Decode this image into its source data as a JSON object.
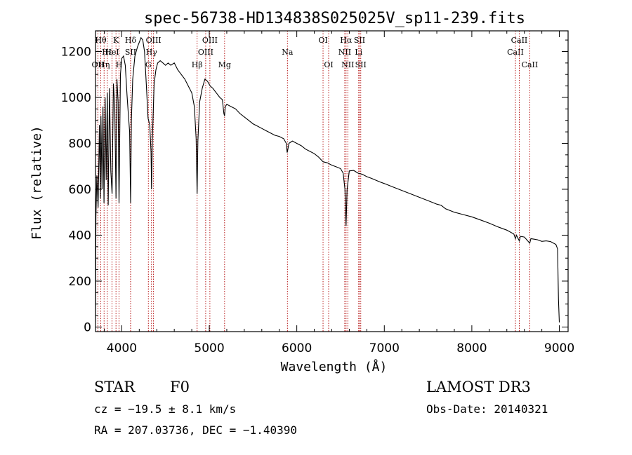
{
  "chart_data": {
    "type": "line",
    "title": "spec-56738-HD134838S025025V_sp11-239.fits",
    "xlabel": "Wavelength (Å)",
    "ylabel": "Flux (relative)",
    "xlim": [
      3700,
      9100
    ],
    "ylim": [
      -20,
      1290
    ],
    "x_ticks": [
      4000,
      5000,
      6000,
      7000,
      8000,
      9000
    ],
    "y_ticks": [
      0,
      200,
      400,
      600,
      800,
      1000,
      1200
    ],
    "grid": false,
    "series": [
      {
        "name": "spectrum",
        "points": [
          [
            3700,
            20
          ],
          [
            3705,
            480
          ],
          [
            3715,
            660
          ],
          [
            3730,
            520
          ],
          [
            3745,
            880
          ],
          [
            3755,
            560
          ],
          [
            3762,
            920
          ],
          [
            3775,
            600
          ],
          [
            3785,
            960
          ],
          [
            3797,
            540
          ],
          [
            3810,
            1000
          ],
          [
            3822,
            640
          ],
          [
            3835,
            1020
          ],
          [
            3845,
            530
          ],
          [
            3860,
            1040
          ],
          [
            3875,
            680
          ],
          [
            3889,
            580
          ],
          [
            3905,
            1060
          ],
          [
            3920,
            960
          ],
          [
            3934,
            560
          ],
          [
            3945,
            1080
          ],
          [
            3958,
            980
          ],
          [
            3969,
            540
          ],
          [
            3985,
            1100
          ],
          [
            4000,
            1170
          ],
          [
            4020,
            1180
          ],
          [
            4040,
            1140
          ],
          [
            4060,
            1010
          ],
          [
            4075,
            930
          ],
          [
            4090,
            850
          ],
          [
            4101,
            540
          ],
          [
            4110,
            900
          ],
          [
            4125,
            1080
          ],
          [
            4150,
            1180
          ],
          [
            4180,
            1220
          ],
          [
            4200,
            1240
          ],
          [
            4220,
            1260
          ],
          [
            4240,
            1250
          ],
          [
            4260,
            1200
          ],
          [
            4280,
            1060
          ],
          [
            4300,
            910
          ],
          [
            4320,
            880
          ],
          [
            4335,
            760
          ],
          [
            4340,
            600
          ],
          [
            4350,
            820
          ],
          [
            4370,
            1060
          ],
          [
            4390,
            1120
          ],
          [
            4410,
            1150
          ],
          [
            4440,
            1160
          ],
          [
            4470,
            1150
          ],
          [
            4500,
            1140
          ],
          [
            4530,
            1150
          ],
          [
            4560,
            1140
          ],
          [
            4600,
            1150
          ],
          [
            4640,
            1120
          ],
          [
            4680,
            1100
          ],
          [
            4720,
            1080
          ],
          [
            4760,
            1050
          ],
          [
            4800,
            1020
          ],
          [
            4830,
            960
          ],
          [
            4850,
            820
          ],
          [
            4861,
            580
          ],
          [
            4870,
            810
          ],
          [
            4890,
            980
          ],
          [
            4920,
            1040
          ],
          [
            4950,
            1080
          ],
          [
            4980,
            1070
          ],
          [
            5010,
            1050
          ],
          [
            5040,
            1040
          ],
          [
            5080,
            1020
          ],
          [
            5120,
            1000
          ],
          [
            5150,
            990
          ],
          [
            5167,
            930
          ],
          [
            5175,
            920
          ],
          [
            5183,
            960
          ],
          [
            5200,
            970
          ],
          [
            5250,
            960
          ],
          [
            5300,
            950
          ],
          [
            5350,
            930
          ],
          [
            5400,
            915
          ],
          [
            5450,
            900
          ],
          [
            5500,
            885
          ],
          [
            5550,
            875
          ],
          [
            5600,
            865
          ],
          [
            5650,
            855
          ],
          [
            5700,
            845
          ],
          [
            5750,
            835
          ],
          [
            5800,
            830
          ],
          [
            5850,
            820
          ],
          [
            5880,
            800
          ],
          [
            5890,
            760
          ],
          [
            5896,
            770
          ],
          [
            5910,
            800
          ],
          [
            5950,
            810
          ],
          [
            6000,
            800
          ],
          [
            6050,
            790
          ],
          [
            6100,
            775
          ],
          [
            6150,
            765
          ],
          [
            6200,
            755
          ],
          [
            6250,
            740
          ],
          [
            6300,
            720
          ],
          [
            6350,
            715
          ],
          [
            6400,
            705
          ],
          [
            6450,
            698
          ],
          [
            6500,
            690
          ],
          [
            6530,
            670
          ],
          [
            6550,
            600
          ],
          [
            6563,
            440
          ],
          [
            6575,
            600
          ],
          [
            6600,
            680
          ],
          [
            6650,
            682
          ],
          [
            6700,
            670
          ],
          [
            6750,
            665
          ],
          [
            6800,
            655
          ],
          [
            6850,
            648
          ],
          [
            6900,
            640
          ],
          [
            6950,
            632
          ],
          [
            7000,
            625
          ],
          [
            7100,
            610
          ],
          [
            7200,
            595
          ],
          [
            7300,
            580
          ],
          [
            7400,
            565
          ],
          [
            7500,
            550
          ],
          [
            7600,
            535
          ],
          [
            7650,
            530
          ],
          [
            7700,
            515
          ],
          [
            7800,
            500
          ],
          [
            7900,
            490
          ],
          [
            8000,
            480
          ],
          [
            8100,
            466
          ],
          [
            8200,
            452
          ],
          [
            8300,
            436
          ],
          [
            8400,
            422
          ],
          [
            8480,
            405
          ],
          [
            8498,
            385
          ],
          [
            8510,
            400
          ],
          [
            8542,
            375
          ],
          [
            8555,
            395
          ],
          [
            8600,
            392
          ],
          [
            8662,
            365
          ],
          [
            8675,
            385
          ],
          [
            8750,
            380
          ],
          [
            8800,
            373
          ],
          [
            8850,
            375
          ],
          [
            8900,
            372
          ],
          [
            8960,
            360
          ],
          [
            8980,
            340
          ],
          [
            8990,
            120
          ],
          [
            9000,
            20
          ]
        ]
      }
    ],
    "line_labels": [
      {
        "wl": 3727,
        "text": "OII",
        "row": 3
      },
      {
        "wl": 3760,
        "text": "Hθ",
        "row": 1
      },
      {
        "wl": 3798,
        "text": "Hη",
        "row": 3
      },
      {
        "wl": 3835,
        "text": "Hε",
        "row": 2
      },
      {
        "wl": 3889,
        "text": "HeI",
        "row": 2
      },
      {
        "wl": 3934,
        "text": "K",
        "row": 1
      },
      {
        "wl": 3969,
        "text": "H",
        "row": 3
      },
      {
        "wl": 4101,
        "text": "Hδ",
        "row": 1
      },
      {
        "wl": 4101,
        "text": "SII",
        "row": 2
      },
      {
        "wl": 4304,
        "text": "G",
        "row": 3
      },
      {
        "wl": 4340,
        "text": "Hγ",
        "row": 2
      },
      {
        "wl": 4363,
        "text": "OIII",
        "row": 1
      },
      {
        "wl": 4861,
        "text": "Hβ",
        "row": 3
      },
      {
        "wl": 4959,
        "text": "OIII",
        "row": 2
      },
      {
        "wl": 5007,
        "text": "OIII",
        "row": 1
      },
      {
        "wl": 5175,
        "text": "Mg",
        "row": 3
      },
      {
        "wl": 5893,
        "text": "Na",
        "row": 2
      },
      {
        "wl": 6300,
        "text": "OI",
        "row": 1
      },
      {
        "wl": 6364,
        "text": "OI",
        "row": 3
      },
      {
        "wl": 6548,
        "text": "NII",
        "row": 2
      },
      {
        "wl": 6563,
        "text": "Hα",
        "row": 1
      },
      {
        "wl": 6583,
        "text": "NII",
        "row": 3
      },
      {
        "wl": 6707,
        "text": "Li",
        "row": 2
      },
      {
        "wl": 6717,
        "text": "SII",
        "row": 1
      },
      {
        "wl": 6731,
        "text": "SII",
        "row": 3
      },
      {
        "wl": 8498,
        "text": "CaII",
        "row": 2
      },
      {
        "wl": 8542,
        "text": "CaII",
        "row": 1
      },
      {
        "wl": 8662,
        "text": "CaII",
        "row": 3
      }
    ]
  },
  "info": {
    "object_type": "STAR",
    "subclass": "F0",
    "survey": "LAMOST DR3",
    "cz": "cz = −19.5 ± 8.1 km/s",
    "obs_date": "Obs-Date: 20140321",
    "coords": "RA = 207.03736, DEC =  −1.40390"
  },
  "colors": {
    "line_marker": "#b00000",
    "spectrum": "#000000",
    "axes": "#000000"
  }
}
